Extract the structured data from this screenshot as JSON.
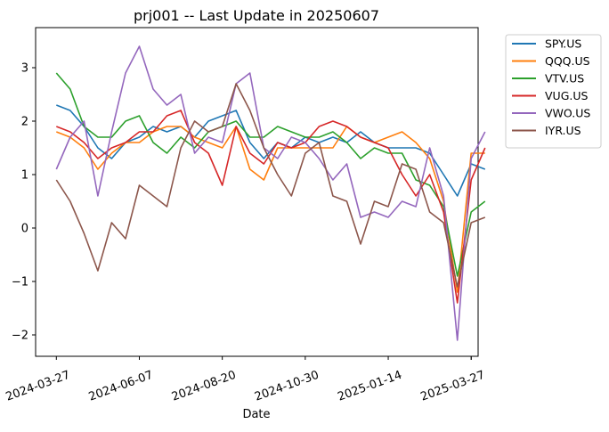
{
  "chart_data": {
    "type": "line",
    "title": "prj001 -- Last Update in 20250607",
    "xlabel": "Date",
    "ylabel": "",
    "x_ticks": [
      "2024-03-27",
      "2024-06-07",
      "2024-08-20",
      "2024-10-30",
      "2025-01-14",
      "2025-03-27"
    ],
    "x_range_index": [
      -1.5,
      30.5
    ],
    "y_ticks": [
      3,
      2,
      1,
      0,
      -1,
      -2
    ],
    "y_tick_labels": [
      "3",
      "2",
      "1",
      "0",
      "−1",
      "−2"
    ],
    "ylim": [
      -2.4,
      3.75
    ],
    "grid": false,
    "legend_position": "outside-top-right",
    "series": [
      {
        "name": "SPY.US",
        "color": "#1f77b4",
        "values": [
          2.3,
          2.2,
          1.9,
          1.5,
          1.3,
          1.6,
          1.7,
          1.9,
          1.8,
          1.9,
          1.7,
          2.0,
          2.1,
          2.2,
          1.6,
          1.3,
          1.6,
          1.5,
          1.7,
          1.6,
          1.7,
          1.6,
          1.8,
          1.6,
          1.5,
          1.5,
          1.5,
          1.4,
          1.0,
          0.6,
          1.2,
          1.1
        ]
      },
      {
        "name": "QQQ.US",
        "color": "#ff7f0e",
        "values": [
          1.8,
          1.7,
          1.5,
          1.1,
          1.4,
          1.6,
          1.6,
          1.8,
          1.9,
          1.9,
          1.7,
          1.6,
          1.5,
          1.9,
          1.1,
          0.9,
          1.5,
          1.5,
          1.5,
          1.5,
          1.5,
          1.9,
          1.7,
          1.6,
          1.7,
          1.8,
          1.6,
          1.3,
          0.5,
          -1.2,
          1.4,
          1.4
        ]
      },
      {
        "name": "VTV.US",
        "color": "#2ca02c",
        "values": [
          2.9,
          2.6,
          1.9,
          1.7,
          1.7,
          2.0,
          2.1,
          1.6,
          1.4,
          1.7,
          1.5,
          1.8,
          1.9,
          2.0,
          1.7,
          1.7,
          1.9,
          1.8,
          1.7,
          1.7,
          1.8,
          1.6,
          1.3,
          1.5,
          1.4,
          1.4,
          0.9,
          0.8,
          0.4,
          -0.9,
          0.3,
          0.5
        ]
      },
      {
        "name": "VUG.US",
        "color": "#d62728",
        "values": [
          1.9,
          1.8,
          1.6,
          1.3,
          1.5,
          1.6,
          1.8,
          1.8,
          2.1,
          2.2,
          1.6,
          1.4,
          0.8,
          1.9,
          1.4,
          1.2,
          1.6,
          1.5,
          1.6,
          1.9,
          2.0,
          1.9,
          1.7,
          1.6,
          1.5,
          1.0,
          0.6,
          1.0,
          0.3,
          -1.4,
          0.9,
          1.5
        ]
      },
      {
        "name": "VWO.US",
        "color": "#9467bd",
        "values": [
          1.1,
          1.7,
          2.0,
          0.6,
          1.8,
          2.9,
          3.4,
          2.6,
          2.3,
          2.5,
          1.4,
          1.7,
          1.6,
          2.7,
          2.9,
          1.5,
          1.3,
          1.7,
          1.6,
          1.3,
          0.9,
          1.2,
          0.2,
          0.3,
          0.2,
          0.5,
          0.4,
          1.5,
          0.6,
          -2.1,
          1.3,
          1.8
        ]
      },
      {
        "name": "IYR.US",
        "color": "#8c564b",
        "values": [
          0.9,
          0.5,
          -0.1,
          -0.8,
          0.1,
          -0.2,
          0.8,
          0.6,
          0.4,
          1.5,
          2.0,
          1.8,
          1.9,
          2.7,
          2.2,
          1.5,
          1.0,
          0.6,
          1.4,
          1.6,
          0.6,
          0.5,
          -0.3,
          0.5,
          0.4,
          1.2,
          1.1,
          0.3,
          0.1,
          -1.1,
          0.1,
          0.2
        ]
      }
    ]
  }
}
